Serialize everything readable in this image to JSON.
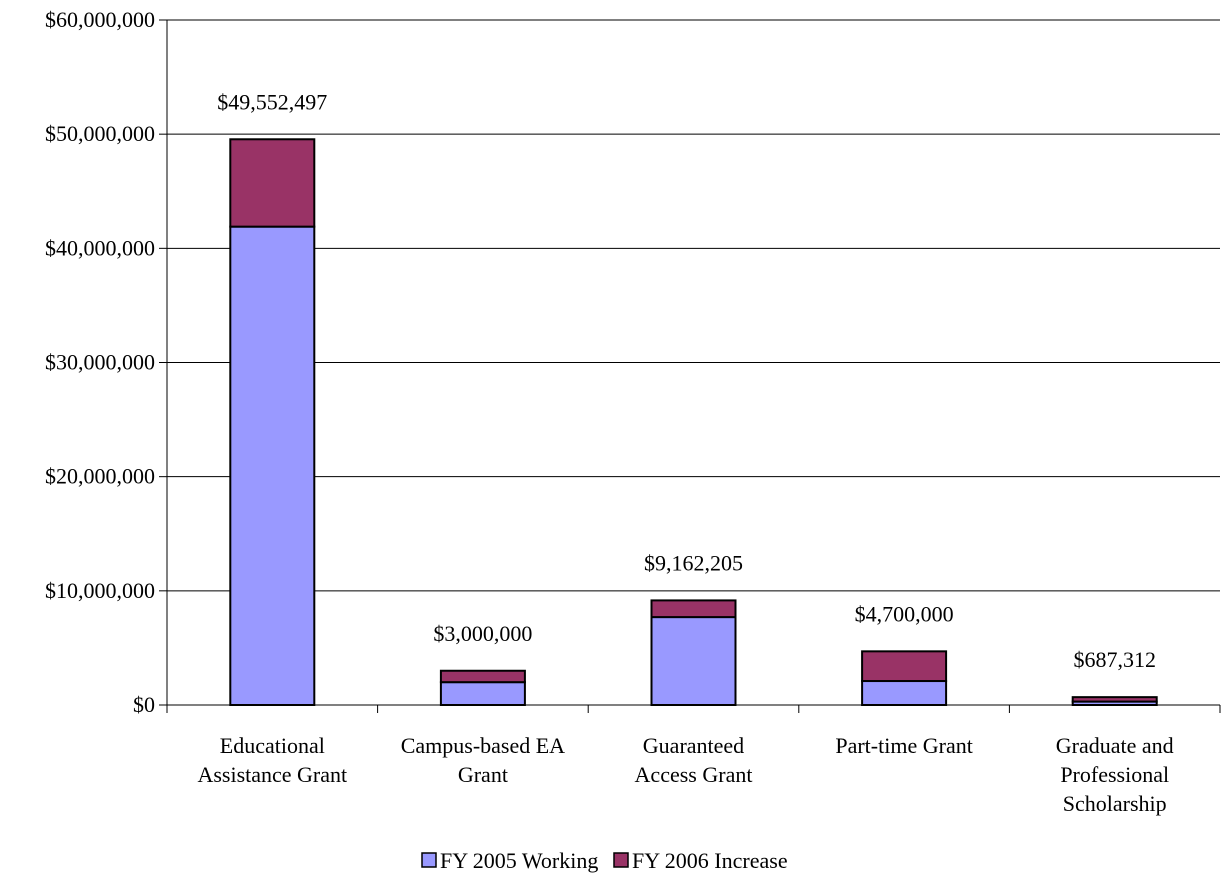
{
  "chart_data": {
    "type": "bar",
    "stacked": true,
    "title": "",
    "xlabel": "",
    "ylabel": "",
    "ylim": [
      0,
      60000000
    ],
    "yticks": [
      0,
      10000000,
      20000000,
      30000000,
      40000000,
      50000000,
      60000000
    ],
    "ytick_labels": [
      "$0",
      "$10,000,000",
      "$20,000,000",
      "$30,000,000",
      "$40,000,000",
      "$50,000,000",
      "$60,000,000"
    ],
    "grid": true,
    "legend_position": "bottom",
    "categories": [
      [
        "Educational",
        "Assistance Grant"
      ],
      [
        "Campus-based EA",
        "Grant"
      ],
      [
        "Guaranteed",
        "Access Grant"
      ],
      [
        "Part-time Grant"
      ],
      [
        "Graduate and",
        "Professional",
        "Scholarship"
      ]
    ],
    "series": [
      {
        "name": "FY 2005 Working",
        "color": "#9999ff",
        "values": [
          41900000,
          2000000,
          7700000,
          2100000,
          300000
        ]
      },
      {
        "name": "FY 2006 Increase",
        "color": "#993366",
        "values": [
          7652497,
          1000000,
          1462205,
          2600000,
          387312
        ]
      }
    ],
    "total_labels": [
      "$49,552,497",
      "$3,000,000",
      "$9,162,205",
      "$4,700,000",
      "$687,312"
    ]
  }
}
